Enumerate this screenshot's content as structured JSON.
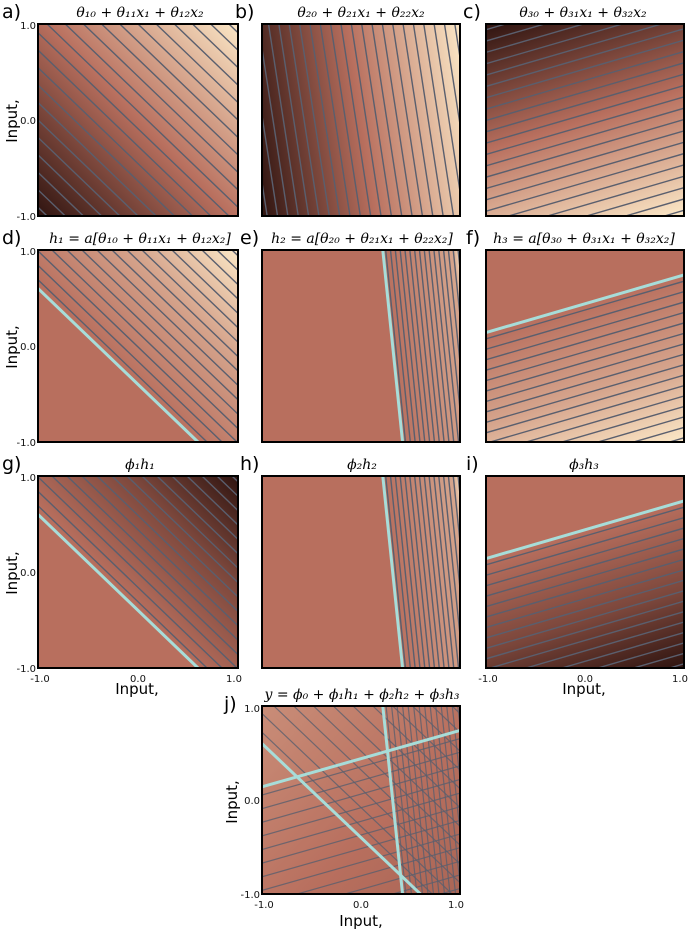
{
  "panels": [
    {
      "id": "a",
      "label": "a)",
      "title": "θ₁₀ + θ₁₁x₁ + θ₁₂x₂",
      "kind": "linear",
      "a": 1.0,
      "b": 1.0,
      "c": 0.3,
      "scheme": "up",
      "gain": 0.5
    },
    {
      "id": "b",
      "label": "b)",
      "title": "θ₂₀ + θ₂₁x₁ + θ₂₂x₂",
      "kind": "linear",
      "a": 1.0,
      "b": 0.15,
      "c": 0.0,
      "scheme": "up",
      "gain": 0.5
    },
    {
      "id": "c",
      "label": "c)",
      "title": "θ₃₀ + θ₃₁x₁ + θ₃₂x₂",
      "kind": "linear",
      "a": 0.3,
      "b": -1.0,
      "c": 0.0,
      "scheme": "up",
      "gain": 0.5
    },
    {
      "id": "d",
      "label": "d)",
      "title": "h₁ = a[θ₁₀ + θ₁₁x₁ + θ₁₂x₂]",
      "kind": "relu",
      "a": 1.0,
      "b": 1.0,
      "c": 0.4,
      "scheme": "up",
      "gain": 0.55
    },
    {
      "id": "e",
      "label": "e)",
      "title": "h₂ = a[θ₂₀ + θ₂₁x₁ + θ₂₂x₂]",
      "kind": "relu",
      "a": 1.0,
      "b": 0.1,
      "c": -0.32,
      "scheme": "up",
      "gain": 0.9
    },
    {
      "id": "f",
      "label": "f)",
      "title": "h₃ = a[θ₃₀ + θ₃₁x₁ + θ₃₂x₂]",
      "kind": "relu",
      "a": 0.3,
      "b": -1.0,
      "c": 0.44,
      "scheme": "up",
      "gain": 0.55
    },
    {
      "id": "g",
      "label": "g)",
      "title": "ϕ₁h₁",
      "kind": "relu",
      "a": 1.0,
      "b": 1.0,
      "c": 0.4,
      "scheme": "down",
      "gain": 0.55
    },
    {
      "id": "h",
      "label": "h)",
      "title": "ϕ₂h₂",
      "kind": "relu",
      "a": 1.0,
      "b": 0.1,
      "c": -0.32,
      "scheme": "up",
      "gain": 0.9
    },
    {
      "id": "i",
      "label": "i)",
      "title": "ϕ₃h₃",
      "kind": "relu",
      "a": 0.3,
      "b": -1.0,
      "c": 0.44,
      "scheme": "down",
      "gain": 0.55
    },
    {
      "id": "j",
      "label": "j)",
      "title": "y = ϕ₀ + ϕ₁h₁ + ϕ₂h₂ + ϕ₃h₃",
      "kind": "sum"
    }
  ],
  "axes": {
    "y_label": "Input,",
    "x_label": "Input,",
    "ticks": [
      "-1.0",
      "0.0",
      "1.0"
    ],
    "range": [
      -1.0,
      1.0
    ]
  },
  "colors": {
    "base": "#b86f5e",
    "light": "#fbe7c6",
    "dark": "#2f1410",
    "contour": "#5a5f6e",
    "joint": "#a7ddd9",
    "frame": "#000000"
  }
}
